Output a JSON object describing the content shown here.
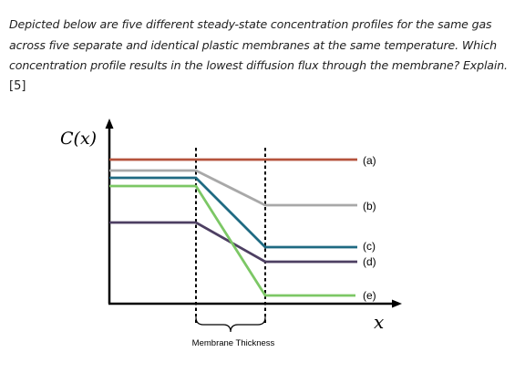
{
  "question": {
    "lines": [
      "Depicted below are five different steady-state concentration profiles for the same gas",
      "across five separate and identical plastic membranes at the same temperature. Which",
      "concentration profile results in the lowest diffusion flux through the membrane? Explain."
    ],
    "marks": "[5]"
  },
  "figure": {
    "ylabel": "C(x)",
    "xlabel": "x",
    "brace_label": "Membrane Thickness",
    "profiles": [
      {
        "label": "(a)",
        "color": "#b5533c"
      },
      {
        "label": "(b)",
        "color": "#a8a8a8"
      },
      {
        "label": "(c)",
        "color": "#1f6a82"
      },
      {
        "label": "(d)",
        "color": "#4d3f62"
      },
      {
        "label": "(e)",
        "color": "#7cc765"
      }
    ]
  }
}
